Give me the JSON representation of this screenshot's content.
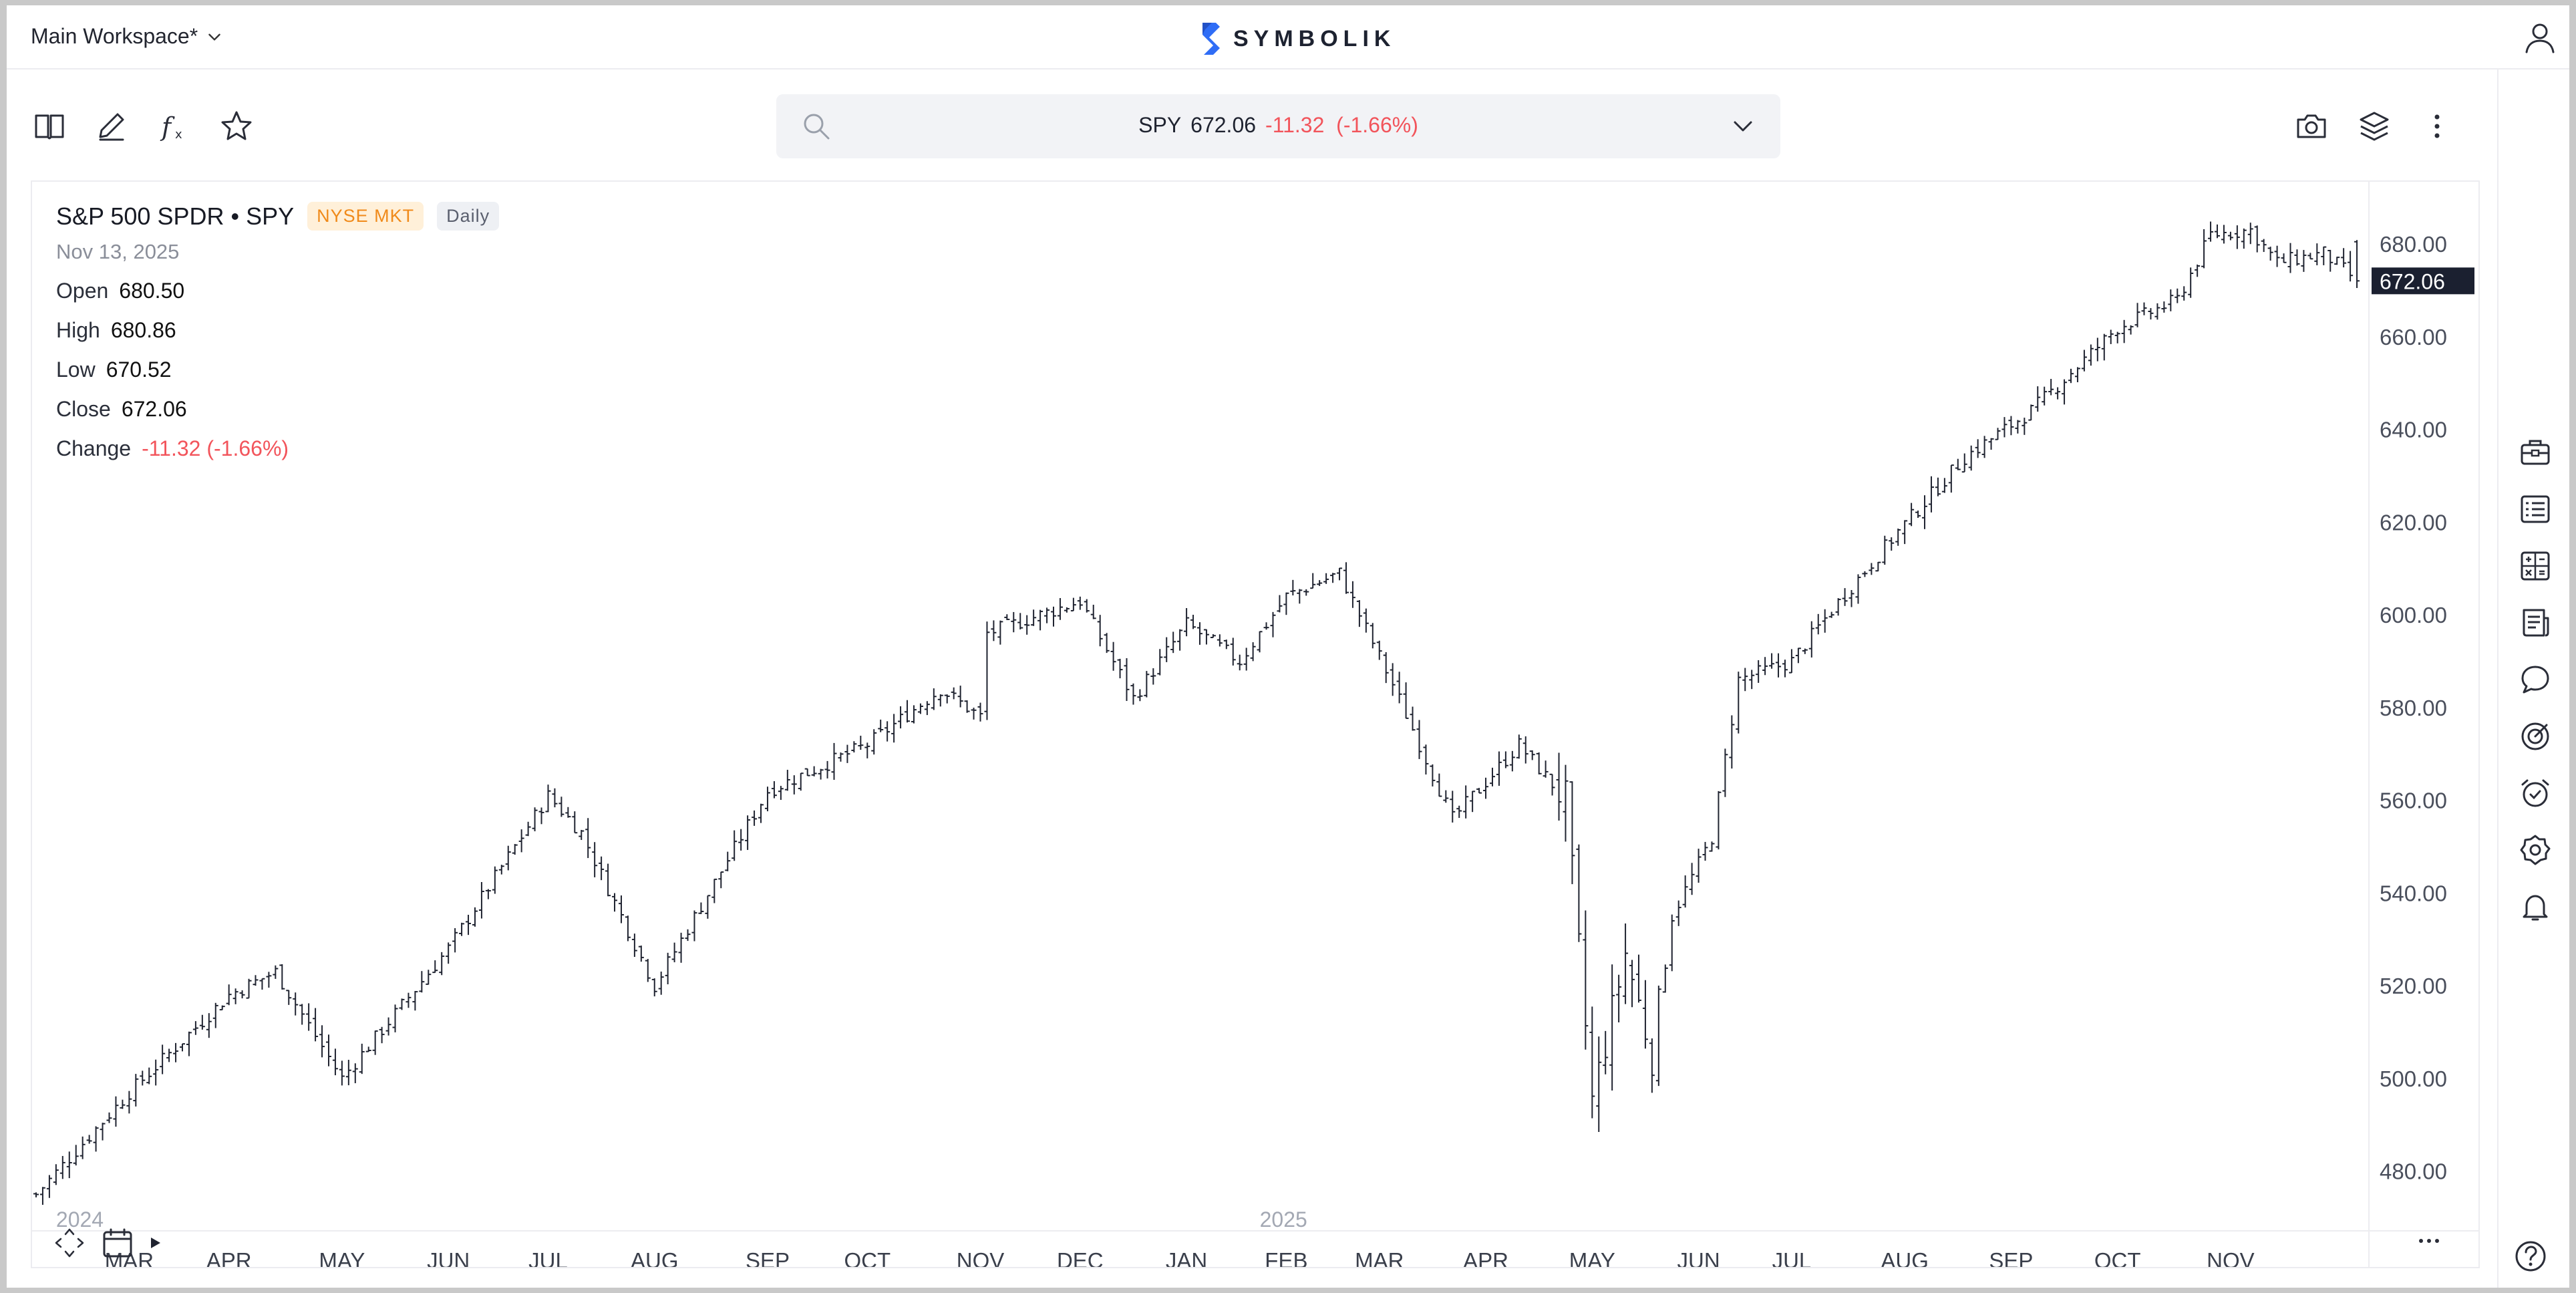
{
  "header": {
    "workspace_label": "Main Workspace*",
    "brand_name": "SYMBOLIK",
    "brand_color": "#2f6df6"
  },
  "toolbar": {
    "left_icons": [
      "book-icon",
      "pencil-icon",
      "function-icon",
      "star-icon"
    ],
    "right_icons": [
      "camera-icon",
      "layers-icon",
      "more-vertical-icon"
    ]
  },
  "search": {
    "symbol": "SPY",
    "last": "672.06",
    "change": "-11.32",
    "change_pct": "(-1.66%)"
  },
  "legend": {
    "title": "S&P 500 SPDR • SPY",
    "exchange": "NYSE MKT",
    "interval": "Daily",
    "date": "Nov 13, 2025",
    "open_label": "Open",
    "open": "680.50",
    "high_label": "High",
    "high": "680.86",
    "low_label": "Low",
    "low": "670.52",
    "close_label": "Close",
    "close": "672.06",
    "change_label": "Change",
    "change": "-11.32 (-1.66%)"
  },
  "sidebar_icons": [
    "briefcase-icon",
    "watchlist-icon",
    "calculator-icon",
    "news-icon",
    "chat-icon",
    "target-icon",
    "alarm-clock-icon",
    "settings-badge-icon",
    "bell-icon"
  ],
  "colors": {
    "up": "#1f2330",
    "down": "#f2545b",
    "badge_bg": "#1b2030",
    "exchange_badge": "#f08a1a"
  },
  "chart_data": {
    "type": "ohlc",
    "interval": "Daily",
    "ylim": [
      470,
      692
    ],
    "y_ticks": [
      "680.00",
      "660.00",
      "640.00",
      "620.00",
      "600.00",
      "580.00",
      "560.00",
      "540.00",
      "520.00",
      "500.00",
      "480.00"
    ],
    "y_tick_values": [
      680,
      660,
      640,
      620,
      600,
      580,
      560,
      540,
      520,
      500,
      480
    ],
    "last_price_label": "672.06",
    "last_price": 672.06,
    "x_months": [
      "MAR",
      "APR",
      "MAY",
      "JUN",
      "JUL",
      "AUG",
      "SEP",
      "OCT",
      "NOV",
      "DEC",
      "JAN",
      "FEB",
      "MAR",
      "APR",
      "MAY",
      "JUN",
      "JUL",
      "AUG",
      "SEP",
      "OCT",
      "NOV"
    ],
    "x_month_index": [
      14,
      29,
      46,
      62,
      77,
      93,
      110,
      125,
      142,
      157,
      173,
      188,
      202,
      218,
      234,
      250,
      264,
      281,
      297,
      313,
      330
    ],
    "x_years": [
      {
        "label": "2024",
        "index": 2
      },
      {
        "label": "2025",
        "index": 183
      }
    ],
    "total_bars": 350,
    "anchors": [
      [
        0,
        475
      ],
      [
        14,
        497
      ],
      [
        29,
        518
      ],
      [
        36,
        523
      ],
      [
        46,
        500
      ],
      [
        62,
        528
      ],
      [
        77,
        561
      ],
      [
        82,
        553
      ],
      [
        93,
        520
      ],
      [
        110,
        562
      ],
      [
        125,
        572
      ],
      [
        136,
        584
      ],
      [
        142,
        578
      ],
      [
        143,
        596
      ],
      [
        157,
        603
      ],
      [
        165,
        582
      ],
      [
        173,
        598
      ],
      [
        181,
        590
      ],
      [
        188,
        604
      ],
      [
        196,
        609
      ],
      [
        204,
        585
      ],
      [
        213,
        556
      ],
      [
        223,
        572
      ],
      [
        230,
        560
      ],
      [
        234,
        495
      ],
      [
        239,
        527
      ],
      [
        243,
        505
      ],
      [
        246,
        535
      ],
      [
        252,
        552
      ],
      [
        256,
        586
      ],
      [
        264,
        590
      ],
      [
        270,
        601
      ],
      [
        280,
        618
      ],
      [
        290,
        634
      ],
      [
        300,
        644
      ],
      [
        313,
        662
      ],
      [
        322,
        668
      ],
      [
        327,
        682
      ],
      [
        333,
        683
      ],
      [
        337,
        676
      ],
      [
        344,
        678
      ],
      [
        349,
        672.06
      ]
    ],
    "last_bar": {
      "open": 680.5,
      "high": 680.86,
      "low": 670.52,
      "close": 672.06
    }
  }
}
